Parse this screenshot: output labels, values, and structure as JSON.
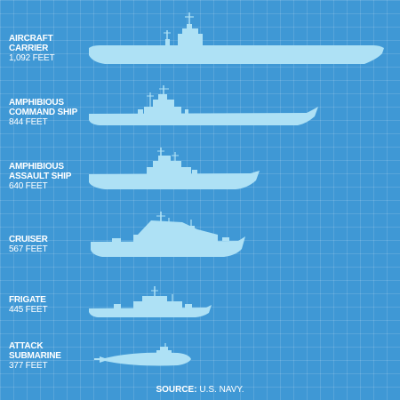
{
  "ships": [
    {
      "id": "aircraft-carrier",
      "name_lines": [
        "AIRCRAFT",
        "CARRIER"
      ],
      "length_text": "1,092 FEET",
      "length_ft": 1092
    },
    {
      "id": "amphibious-command",
      "name_lines": [
        "AMPHIBIOUS",
        "COMMAND SHIP"
      ],
      "length_text": "844 FEET",
      "length_ft": 844
    },
    {
      "id": "amphibious-assault",
      "name_lines": [
        "AMPHIBIOUS",
        "ASSAULT SHIP"
      ],
      "length_text": "640 FEET",
      "length_ft": 640
    },
    {
      "id": "cruiser",
      "name_lines": [
        "CRUISER"
      ],
      "length_text": "567 FEET",
      "length_ft": 567
    },
    {
      "id": "frigate",
      "name_lines": [
        "FRIGATE"
      ],
      "length_text": "445 FEET",
      "length_ft": 445
    },
    {
      "id": "attack-submarine",
      "name_lines": [
        "ATTACK",
        "SUBMARINE"
      ],
      "length_text": "377 FEET",
      "length_ft": 377
    }
  ],
  "footer": {
    "source_label": "SOURCE:",
    "source_value": "U.S. NAVY."
  },
  "colors": {
    "background": "#3f98d5",
    "grid": "#6fb2e0",
    "silhouette": "#aee1f5",
    "text": "#ffffff"
  }
}
